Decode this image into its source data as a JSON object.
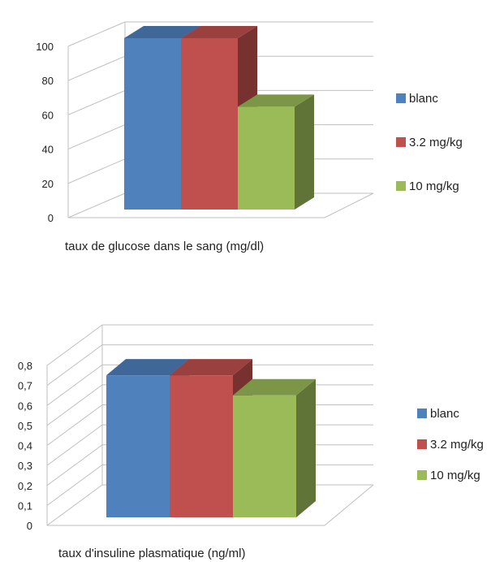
{
  "chart_data": [
    {
      "type": "bar",
      "xlabel": "taux de glucose dans le sang (mg/dl)",
      "ylim": [
        0,
        100
      ],
      "yticks": [
        "0",
        "20",
        "40",
        "60",
        "80",
        "100"
      ],
      "series": [
        {
          "name": "blanc",
          "values": [
            100
          ],
          "color": "#4F81BD"
        },
        {
          "name": "3.2 mg/kg",
          "values": [
            100
          ],
          "color": "#C0504D"
        },
        {
          "name": "10 mg/kg",
          "values": [
            60
          ],
          "color": "#9BBB59"
        }
      ],
      "legend": "right",
      "grid": true,
      "style": "3d"
    },
    {
      "type": "bar",
      "xlabel": "taux d'insuline plasmatique (ng/ml)",
      "ylim": [
        0,
        0.8
      ],
      "yticks": [
        "0",
        "0,1",
        "0,2",
        "0,3",
        "0,4",
        "0,5",
        "0,6",
        "0,7",
        "0,8"
      ],
      "series": [
        {
          "name": "blanc",
          "values": [
            0.71
          ],
          "color": "#4F81BD"
        },
        {
          "name": "3.2 mg/kg",
          "values": [
            0.71
          ],
          "color": "#C0504D"
        },
        {
          "name": "10 mg/kg",
          "values": [
            0.61
          ],
          "color": "#9BBB59"
        }
      ],
      "legend": "right",
      "grid": true,
      "style": "3d"
    }
  ]
}
